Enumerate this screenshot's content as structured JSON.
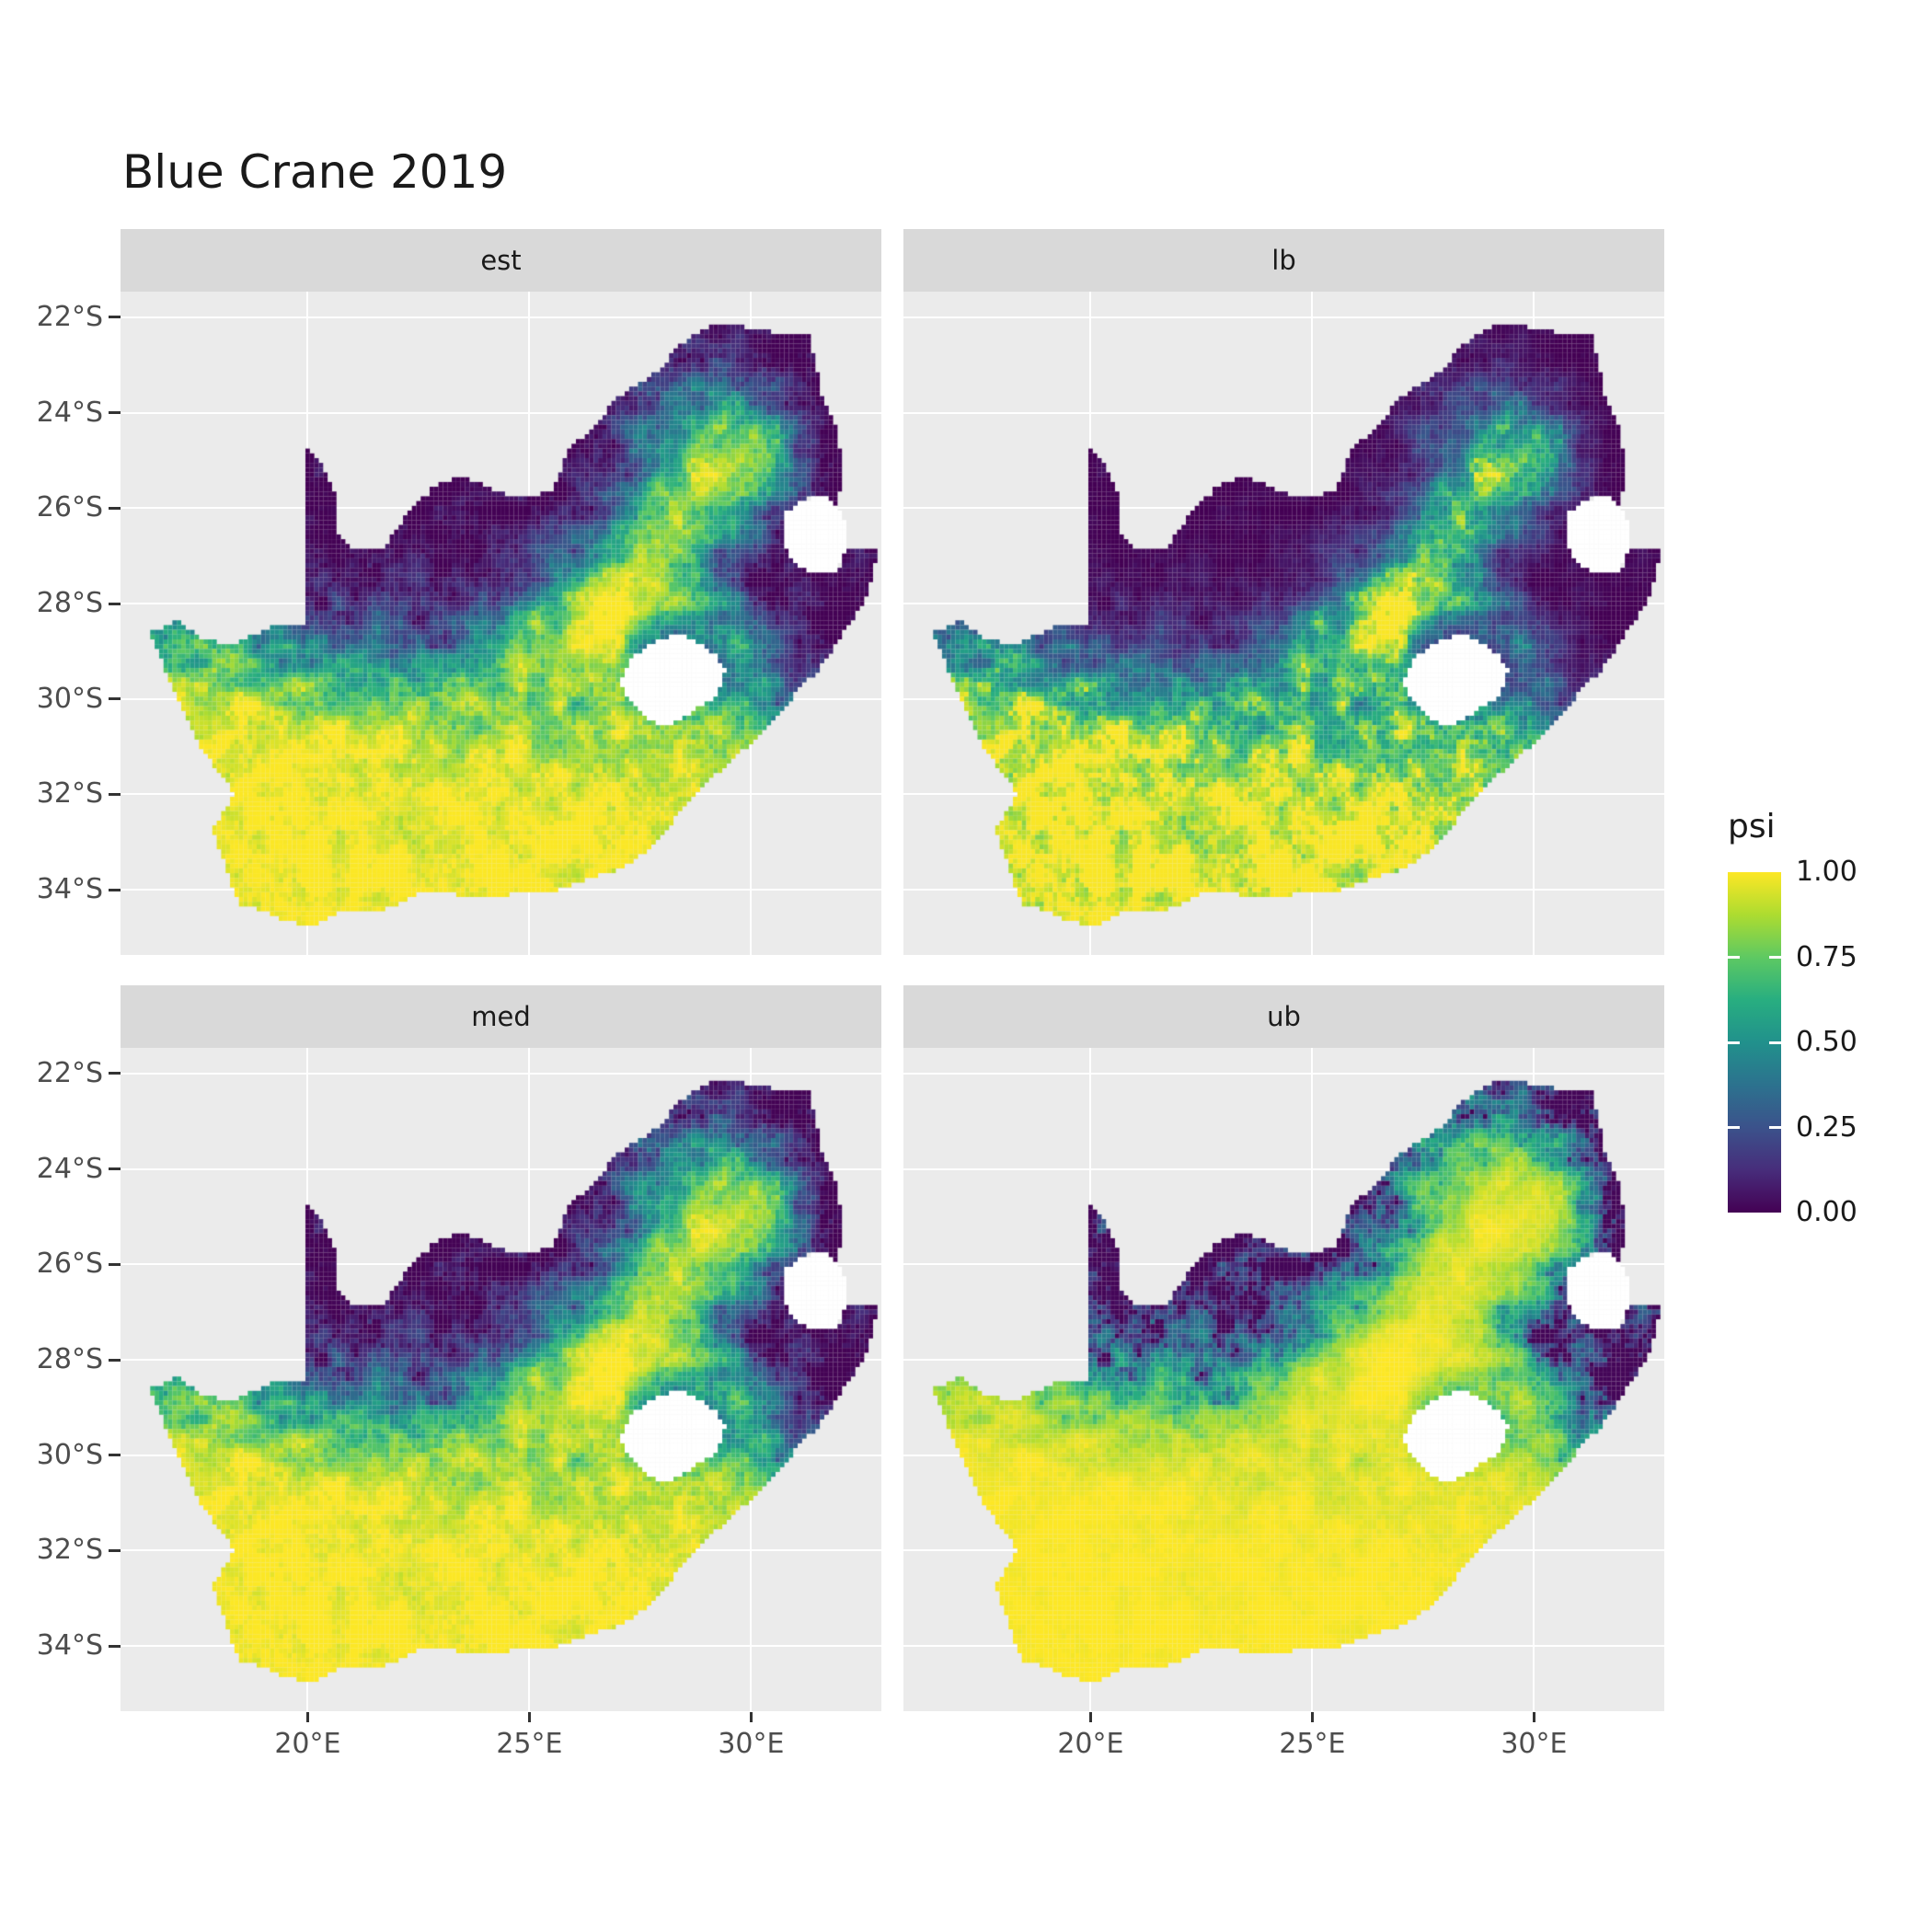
{
  "title": "Blue Crane 2019",
  "facets": [
    {
      "label": "est"
    },
    {
      "label": "lb"
    },
    {
      "label": "med"
    },
    {
      "label": "ub"
    }
  ],
  "axes": {
    "y_ticks": [
      "22°S",
      "24°S",
      "26°S",
      "28°S",
      "30°S",
      "32°S",
      "34°S"
    ],
    "x_ticks": [
      "20°E",
      "25°E",
      "30°E"
    ]
  },
  "legend": {
    "title": "psi",
    "labels": [
      "1.00",
      "0.75",
      "0.50",
      "0.25",
      "0.00"
    ],
    "values": [
      1.0,
      0.75,
      0.5,
      0.25,
      0.0
    ]
  },
  "colors": {
    "background": "#FFFFFF",
    "panel_background": "#EBEBEB",
    "strip_background": "#D9D9D9",
    "gridline": "#FFFFFF",
    "axis_text": "#4D4D4D",
    "text": "#1A1A1A",
    "na_fill": "#FFFFFF",
    "viridis": [
      "#440154",
      "#472D7B",
      "#3B528B",
      "#2C728E",
      "#21918C",
      "#28AE80",
      "#5EC962",
      "#ADDC30",
      "#FDE725"
    ]
  },
  "chart_data": {
    "type": "heatmap",
    "title": "Blue Crane 2019",
    "facet_variable_values": [
      "est",
      "lb",
      "med",
      "ub"
    ],
    "fill_variable": "psi",
    "fill_range": [
      0.0,
      1.0
    ],
    "legend_breaks": [
      0.0,
      0.25,
      0.5,
      0.75,
      1.0
    ],
    "palette": "viridis",
    "x_axis": {
      "label": "",
      "ticks_deg_E": [
        20,
        25,
        30
      ],
      "tick_labels": [
        "20°E",
        "25°E",
        "30°E"
      ],
      "range_deg_E": [
        15.78,
        32.94
      ]
    },
    "y_axis": {
      "label": "",
      "ticks_deg_S": [
        22,
        24,
        26,
        28,
        30,
        32,
        34
      ],
      "tick_labels": [
        "22°S",
        "24°S",
        "26°S",
        "28°S",
        "30°S",
        "32°S",
        "34°S"
      ],
      "range_deg_S": [
        21.46,
        35.37
      ]
    },
    "region": "South Africa occupancy raster (~0.1 deg cells); Lesotho and Eswatini are no-data (white) holes",
    "pattern": {
      "low_psi": "psi near 0 across the northern and northeastern interior (Kalahari, Limpopo, lowveld)",
      "high_psi": "psi near 1 in the southwestern / southern Cape, Karoo and along the eastern escarpment band toward ~30E,25S",
      "facet_ordering": "overall psi: lb < est < med < ub (ub almost fully yellow in southern half)"
    }
  }
}
